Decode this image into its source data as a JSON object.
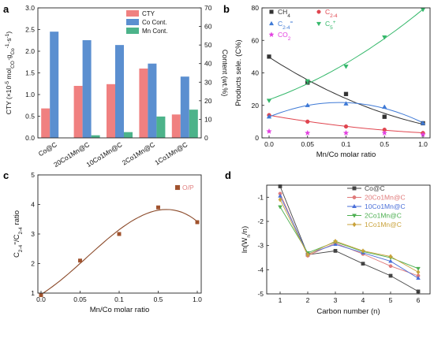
{
  "panels": {
    "a": "a",
    "b": "b",
    "c": "c",
    "d": "d"
  },
  "colors": {
    "cty": "#f08080",
    "co": "#5b8fd0",
    "mn": "#4cb38a",
    "ch4": "#333333",
    "c24": "#e0454f",
    "c24o": "#3f7ad6",
    "c5": "#35b86b",
    "co2": "#e23fe0",
    "ccoc": "#444444",
    "c20": "#e07a7a",
    "c10": "#4a6fd8",
    "c2": "#4caf50",
    "c1": "#c9a23a",
    "fitc": "#8b4a2a",
    "markc": "#a0522d"
  },
  "chart_data": [
    {
      "panel": "a",
      "type": "bar",
      "categories": [
        "Co@C",
        "20Co1Mn@C",
        "10Co1Mn@C",
        "2Co1Mn@C",
        "1Co1Mn@C"
      ],
      "series": [
        {
          "name": "CTY",
          "axis": "left",
          "values": [
            0.68,
            1.2,
            1.24,
            1.6,
            0.54
          ]
        },
        {
          "name": "Co Cont.",
          "axis": "right",
          "values": [
            57.2,
            52.6,
            50.0,
            40.0,
            33.0
          ]
        },
        {
          "name": "Mn Cont.",
          "axis": "right",
          "values": [
            0,
            1.4,
            3.1,
            11.5,
            15.2
          ]
        }
      ],
      "ylabel_prefix": "CTY (×10",
      "ylabel_exp1": "-5",
      "ylabel_mid": " mol",
      "ylabel_sub1": "CO",
      "ylabel_mid2": "·g",
      "ylabel_sub2": "Co",
      "ylabel_exp2": "-1",
      "ylabel_mid3": "·s",
      "ylabel_exp3": "-1",
      "ylabel_end": ")",
      "y2label": "Content (wt.%)",
      "ylim": [
        0,
        3.0
      ],
      "y2lim": [
        0,
        70
      ],
      "yticks": [
        "0.0",
        "0.5",
        "1.0",
        "1.5",
        "2.0",
        "2.5",
        "3.0"
      ],
      "y2ticks": [
        "0",
        "10",
        "20",
        "30",
        "40",
        "50",
        "60",
        "70"
      ]
    },
    {
      "panel": "b",
      "type": "scatter",
      "xlabel": "Mn/Co molar ratio",
      "ylabel": "Products sele. (C%)",
      "x_categories": [
        "0.0",
        "0.05",
        "0.1",
        "0.5",
        "1.0"
      ],
      "ylim": [
        0,
        80
      ],
      "yticks": [
        "0",
        "20",
        "40",
        "60",
        "80"
      ],
      "series": [
        {
          "name": "CH",
          "sub": "4",
          "sup": "",
          "marker": "square",
          "values": [
            50,
            34,
            27,
            13,
            9
          ]
        },
        {
          "name": "C",
          "sub": "2-4",
          "sup": "",
          "marker": "circle",
          "values": [
            14,
            10,
            7,
            5,
            3
          ]
        },
        {
          "name": "C",
          "sub": "2-4",
          "sup": "=",
          "marker": "triangle",
          "values": [
            13,
            20,
            21,
            19,
            9
          ]
        },
        {
          "name": "C",
          "sub": "5",
          "sup": "+",
          "marker": "triangle-down",
          "values": [
            23,
            35,
            44,
            62,
            79
          ]
        },
        {
          "name": "CO",
          "sub": "2",
          "sup": "",
          "marker": "star",
          "values": [
            4,
            3,
            3,
            3,
            2
          ]
        }
      ]
    },
    {
      "panel": "c",
      "type": "scatter",
      "xlabel": "Mn/Co molar ratio",
      "ylabel_main": "C",
      "ylabel_sub1": "2-4",
      "ylabel_sup1": "=",
      "ylabel_slash": "/C",
      "ylabel_sub2": "2-4",
      "ylabel_end": " ratio",
      "x_categories": [
        "0.0",
        "0.05",
        "0.1",
        "0.5",
        "1.0"
      ],
      "ylim": [
        1,
        5
      ],
      "yticks": [
        "1",
        "2",
        "3",
        "4",
        "5"
      ],
      "legend": "O/P",
      "values": [
        0.93,
        2.1,
        3.0,
        3.9,
        3.4
      ]
    },
    {
      "panel": "d",
      "type": "line",
      "xlabel": "Carbon number (n)",
      "ylabel_main": "ln(W",
      "ylabel_sub": "n",
      "ylabel_end": "/n)",
      "x": [
        1,
        2,
        3,
        4,
        5,
        6
      ],
      "xticks": [
        "1",
        "2",
        "3",
        "4",
        "5",
        "6"
      ],
      "ylim": [
        -5,
        -0.5
      ],
      "yticks": [
        "-1",
        "-2",
        "-3",
        "-4",
        "-5"
      ],
      "series": [
        {
          "name": "Co@C",
          "marker": "square",
          "values": [
            -0.55,
            -3.38,
            -3.22,
            -3.75,
            -4.25,
            -4.9
          ]
        },
        {
          "name": "20Co1Mn@C",
          "marker": "circle",
          "values": [
            -0.85,
            -3.42,
            -2.9,
            -3.35,
            -3.85,
            -4.25
          ]
        },
        {
          "name": "10Co1Mn@C",
          "marker": "triangle",
          "values": [
            -0.95,
            -3.35,
            -2.95,
            -3.3,
            -3.65,
            -4.35
          ]
        },
        {
          "name": "2Co1Mn@C",
          "marker": "triangle-down",
          "values": [
            -1.4,
            -3.3,
            -2.85,
            -3.25,
            -3.5,
            -3.95
          ]
        },
        {
          "name": "1Co1Mn@C",
          "marker": "diamond",
          "values": [
            -1.1,
            -3.38,
            -2.82,
            -3.22,
            -3.45,
            -4.1
          ]
        }
      ]
    }
  ]
}
